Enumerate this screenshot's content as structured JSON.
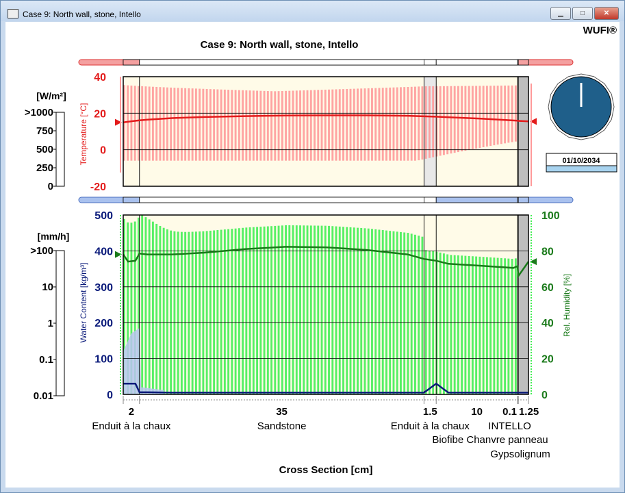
{
  "window": {
    "title": "Case 9: North wall, stone, Intello",
    "min_glyph": "▁",
    "max_glyph": "□",
    "close_glyph": "✕"
  },
  "brand": "WUFI®",
  "chart_data": [
    {
      "type": "line",
      "title": "Case 9: North wall, stone, Intello",
      "ylabel": "Temperature [°C]",
      "ylim": [
        -20,
        40
      ],
      "yticks": [
        -20,
        0,
        20,
        40
      ],
      "x": [
        0,
        1,
        2,
        3,
        6,
        10,
        15,
        20,
        25,
        30,
        35,
        37,
        38.5,
        40,
        44,
        48.5,
        48.6,
        49.85
      ],
      "series": [
        {
          "values": [
            15,
            15.6,
            16.1,
            16.5,
            17.3,
            17.9,
            18.4,
            18.7,
            18.8,
            18.8,
            18.6,
            18.3,
            18.1,
            17.8,
            17.0,
            15.9,
            15.8,
            15.5
          ]
        }
      ],
      "band_min": -6,
      "band_max": 32,
      "left_panel": {
        "label": "[W/m²]",
        "ticks": [
          ">1000",
          "750",
          "500",
          "250",
          "0"
        ]
      }
    },
    {
      "type": "line",
      "ylabel": "Water Content [kg/m³]",
      "ylabel_right": "Rel. Humidity [%]",
      "ylim": [
        0,
        500
      ],
      "ylim_right": [
        0,
        100
      ],
      "yticks": [
        0,
        100,
        200,
        300,
        400,
        500
      ],
      "yticks_right": [
        0,
        20,
        40,
        60,
        80,
        100
      ],
      "x": [
        0,
        0.6,
        1.5,
        2,
        3,
        6,
        10,
        15,
        20,
        25,
        30,
        35,
        37,
        38.5,
        40,
        44,
        48,
        48.5,
        48.6,
        49.85
      ],
      "series": [
        {
          "name": "Rel. Humidity",
          "values": [
            78,
            74,
            74.5,
            78.5,
            78,
            78,
            79,
            81,
            82.3,
            82,
            80.5,
            78,
            75.5,
            74.5,
            72.8,
            71.7,
            70.5,
            71.5,
            66,
            74
          ]
        },
        {
          "name": "Water Content",
          "values": [
            30,
            30,
            30,
            6,
            6,
            5,
            5,
            5,
            5,
            5,
            5,
            5,
            5,
            30,
            5,
            5,
            5,
            5,
            5,
            5
          ]
        }
      ],
      "left_panel": {
        "label": "[mm/h]",
        "ticks": [
          ">100",
          "10",
          "1",
          "0.1",
          "0.01"
        ]
      }
    }
  ],
  "layers": {
    "thicknesses": [
      2,
      35,
      1.5,
      10,
      0.1,
      1.25
    ],
    "thickness_labels": [
      "2",
      "35",
      "1.5",
      "10",
      "0.1",
      "1.25"
    ],
    "names": [
      "Enduit à la chaux",
      "Sandstone",
      "Enduit à la chaux",
      "Biofibe Chanvre panneau",
      "INTELLO",
      "Gypsolignum"
    ],
    "xlabel": "Cross Section [cm]"
  },
  "clock": {
    "date": "01/10/2034",
    "face_color": "#1f5f8a"
  },
  "colors": {
    "temperature": "#e31b1b",
    "temp_band": "#ff9a9a",
    "humidity": "#1a7a1a",
    "rh_band": "#44ee55",
    "water": "#0a1a7a",
    "water_band": "#b8c4f0"
  }
}
